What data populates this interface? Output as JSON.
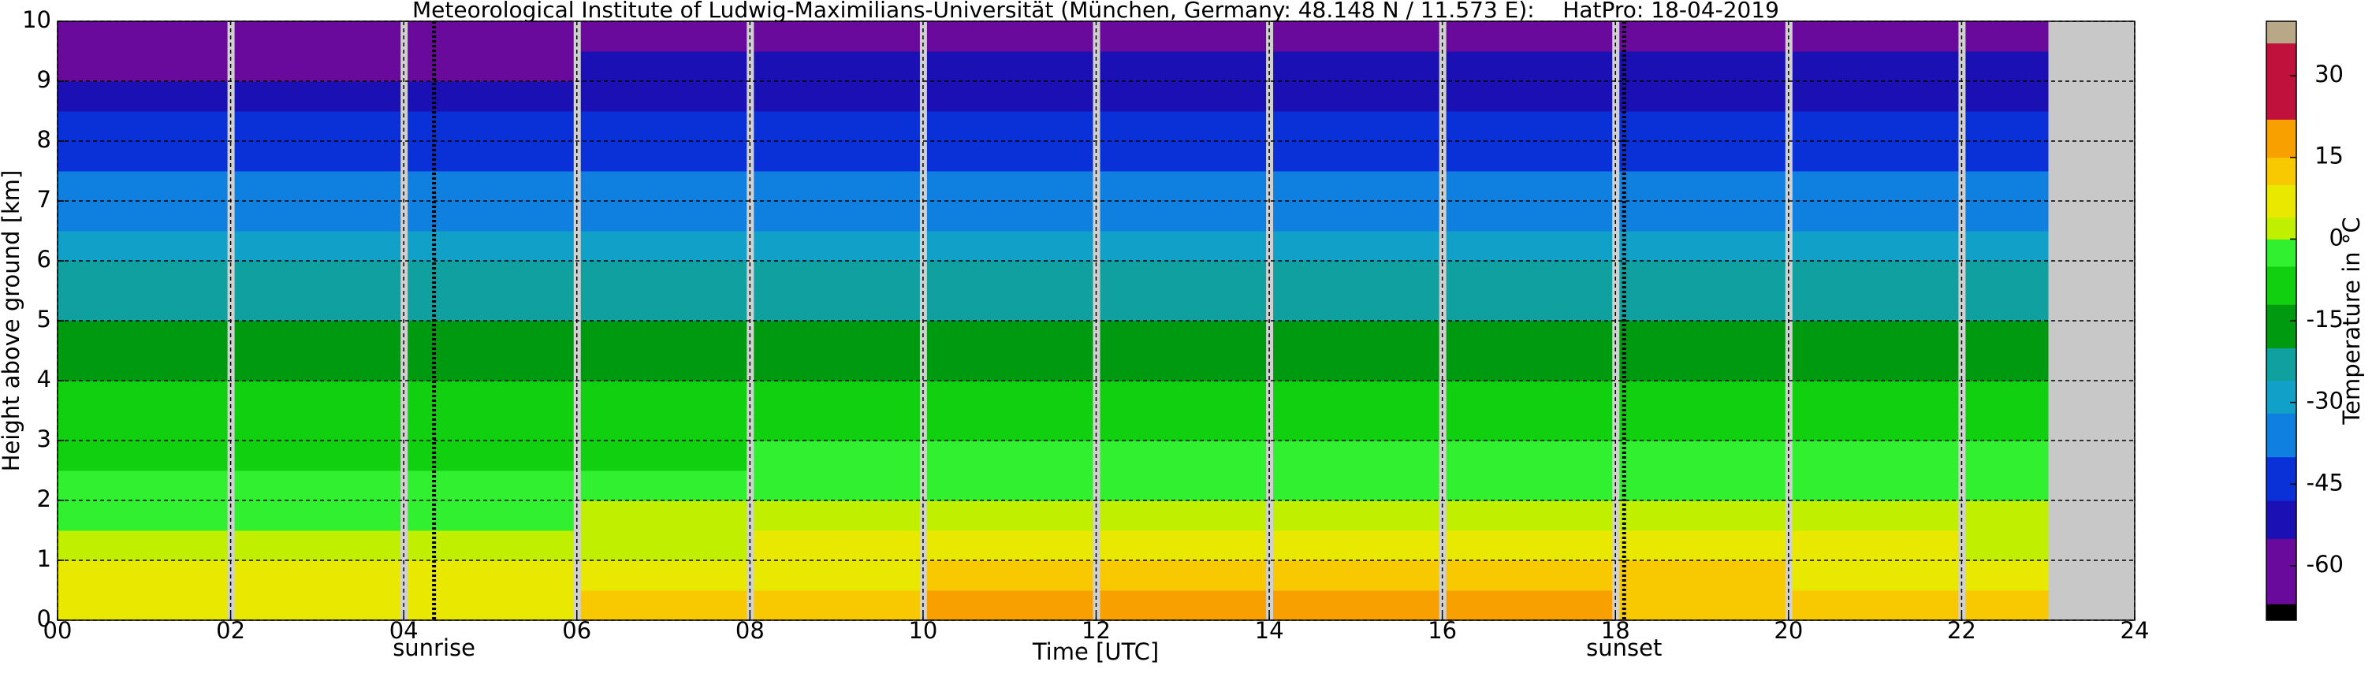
{
  "chart_data": {
    "type": "heatmap",
    "title": "Meteorological Institute of Ludwig-Maximilians-Universität (München, Germany: 48.148 N / 11.573 E):    HatPro: 18-04-2019",
    "xlabel": "Time [UTC]",
    "ylabel": "Height above ground [km]",
    "colorbar_label": "Temperature in °C",
    "xlim": [
      0,
      24
    ],
    "xticks": [
      {
        "value": 0,
        "label": "00"
      },
      {
        "value": 2,
        "label": "02"
      },
      {
        "value": 4,
        "label": "04"
      },
      {
        "value": 6,
        "label": "06"
      },
      {
        "value": 8,
        "label": "08"
      },
      10,
      12,
      14,
      16,
      18,
      20,
      22,
      24
    ],
    "ylim": [
      0,
      10
    ],
    "yticks": [
      0,
      1,
      2,
      3,
      4,
      5,
      6,
      7,
      8,
      9,
      10
    ],
    "grid": true,
    "clim": [
      -70,
      40
    ],
    "cticks": [
      -60,
      -45,
      -30,
      -15,
      0,
      15,
      30
    ],
    "colormap": [
      {
        "value": -70,
        "color": "#000000"
      },
      {
        "value": -67,
        "color": "#6a0a9c"
      },
      {
        "value": -55,
        "color": "#1a10b4"
      },
      {
        "value": -48,
        "color": "#0a30d8"
      },
      {
        "value": -40,
        "color": "#1080e0"
      },
      {
        "value": -32,
        "color": "#10a0c8"
      },
      {
        "value": -26,
        "color": "#10a0a0"
      },
      {
        "value": -20,
        "color": "#009a10"
      },
      {
        "value": -12,
        "color": "#10d010"
      },
      {
        "value": -5,
        "color": "#30f030"
      },
      {
        "value": 0,
        "color": "#c0f000"
      },
      {
        "value": 4,
        "color": "#e8e800"
      },
      {
        "value": 10,
        "color": "#f8c800"
      },
      {
        "value": 15,
        "color": "#f8a000"
      },
      {
        "value": 22,
        "color": "#c0103c"
      },
      {
        "value": 36,
        "color": "#b8a888"
      }
    ],
    "annotations": [
      {
        "label": "sunrise",
        "x": 4.35
      },
      {
        "label": "sunset",
        "x": 18.1
      }
    ],
    "time_edges": [
      0,
      2,
      4,
      6,
      8,
      10,
      12,
      14,
      16,
      18,
      20,
      22,
      23
    ],
    "height_edges": [
      0,
      0.5,
      1,
      1.5,
      2,
      2.5,
      3,
      3.5,
      4,
      4.5,
      5,
      5.5,
      6,
      6.5,
      7,
      7.5,
      8,
      8.5,
      9,
      9.5,
      10
    ],
    "values": [
      [
        9,
        6,
        2,
        -1,
        -4,
        -6,
        -9,
        -12,
        -15,
        -18,
        -21,
        -25,
        -29,
        -33,
        -37,
        -41,
        -46,
        -51,
        -56,
        -61
      ],
      [
        8,
        6,
        2,
        -1,
        -4,
        -6,
        -9,
        -12,
        -15,
        -18,
        -21,
        -25,
        -29,
        -33,
        -37,
        -41,
        -46,
        -51,
        -56,
        -61
      ],
      [
        8,
        5,
        2,
        -1,
        -4,
        -6,
        -9,
        -12,
        -15,
        -18,
        -21,
        -25,
        -29,
        -33,
        -37,
        -41,
        -46,
        -51,
        -56,
        -62
      ],
      [
        11,
        7,
        3,
        0,
        -3,
        -6,
        -9,
        -12,
        -15,
        -18,
        -21,
        -25,
        -29,
        -33,
        -37,
        -41,
        -46,
        -51,
        -55,
        -59
      ],
      [
        13,
        9,
        4,
        1,
        -3,
        -5,
        -8,
        -11,
        -14,
        -18,
        -21,
        -25,
        -29,
        -33,
        -37,
        -41,
        -46,
        -50,
        -54,
        -58
      ],
      [
        15,
        11,
        5,
        1,
        -2,
        -5,
        -8,
        -11,
        -14,
        -17,
        -21,
        -25,
        -29,
        -33,
        -37,
        -41,
        -46,
        -50,
        -54,
        -57
      ],
      [
        16,
        12,
        6,
        2,
        -2,
        -5,
        -8,
        -11,
        -14,
        -17,
        -21,
        -25,
        -29,
        -33,
        -37,
        -41,
        -46,
        -50,
        -54,
        -57
      ],
      [
        16,
        12,
        7,
        2,
        -2,
        -5,
        -8,
        -11,
        -14,
        -17,
        -21,
        -25,
        -29,
        -33,
        -37,
        -41,
        -46,
        -50,
        -54,
        -57
      ],
      [
        16,
        12,
        7,
        2,
        -2,
        -5,
        -8,
        -11,
        -14,
        -17,
        -21,
        -25,
        -29,
        -33,
        -37,
        -41,
        -46,
        -50,
        -54,
        -57
      ],
      [
        13,
        10,
        6,
        1,
        -2,
        -5,
        -8,
        -11,
        -14,
        -17,
        -21,
        -25,
        -29,
        -33,
        -37,
        -41,
        -46,
        -50,
        -54,
        -57
      ],
      [
        11,
        8,
        4,
        0,
        -3,
        -5,
        -8,
        -11,
        -14,
        -17,
        -21,
        -25,
        -29,
        -33,
        -37,
        -41,
        -46,
        -50,
        -54,
        -57
      ],
      [
        10,
        7,
        3,
        0,
        -3,
        -5,
        -8,
        -11,
        -14,
        -17,
        -21,
        -25,
        -29,
        -33,
        -37,
        -41,
        -46,
        -50,
        -54,
        -57
      ]
    ]
  }
}
